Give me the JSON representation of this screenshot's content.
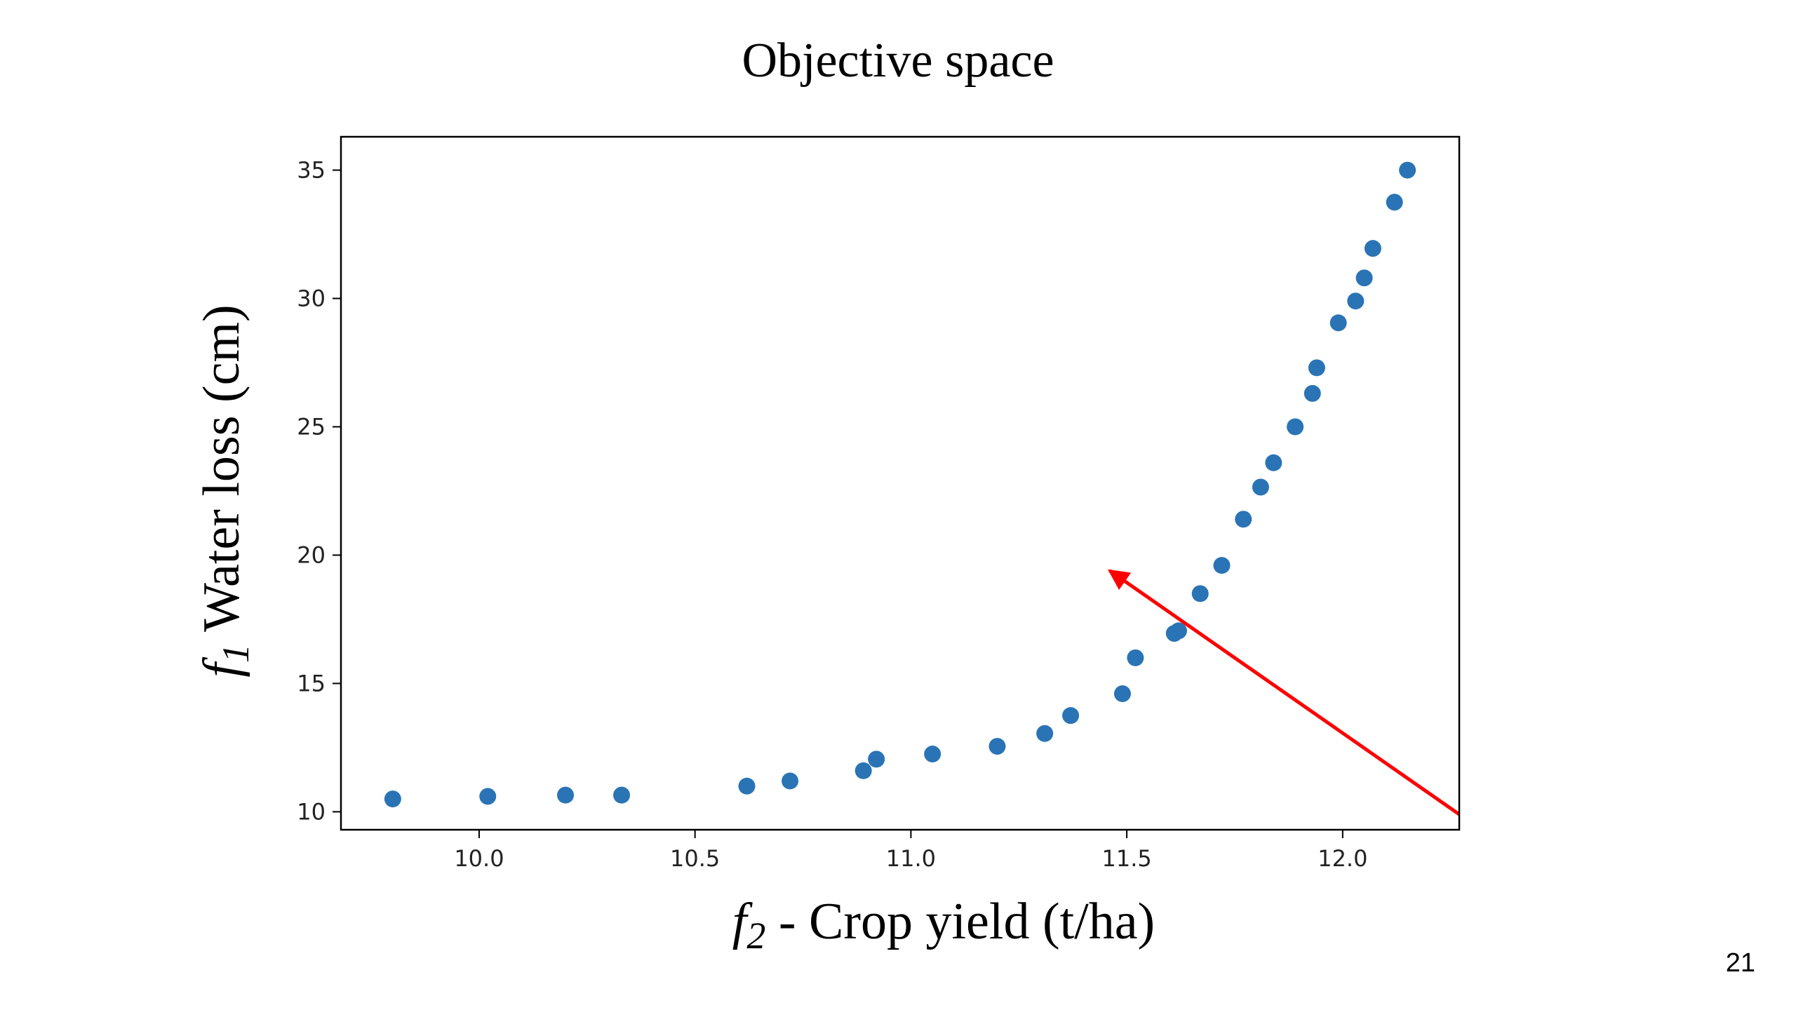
{
  "slide": {
    "title": "Objective space",
    "page_number": "21"
  },
  "chart_data": {
    "type": "scatter",
    "title": "",
    "xlabel": {
      "var": "f",
      "sub": "2",
      "text": " - Crop yield (t/ha)"
    },
    "ylabel": {
      "var": "f",
      "sub": "1",
      "text": " Water loss (cm)"
    },
    "xlim": [
      9.68,
      12.27
    ],
    "ylim": [
      9.3,
      36.3
    ],
    "xticks": [
      "10.0",
      "10.5",
      "11.0",
      "11.5",
      "12.0"
    ],
    "yticks": [
      "10",
      "15",
      "20",
      "25",
      "30",
      "35"
    ],
    "grid": false,
    "marker_color": "#2a74b5",
    "arrow_color": "#ff0000",
    "points": [
      [
        9.8,
        10.5
      ],
      [
        10.02,
        10.6
      ],
      [
        10.2,
        10.65
      ],
      [
        10.33,
        10.65
      ],
      [
        10.62,
        11.0
      ],
      [
        10.72,
        11.2
      ],
      [
        10.89,
        11.6
      ],
      [
        10.92,
        12.05
      ],
      [
        11.05,
        12.25
      ],
      [
        11.2,
        12.55
      ],
      [
        11.31,
        13.05
      ],
      [
        11.37,
        13.75
      ],
      [
        11.49,
        14.6
      ],
      [
        11.52,
        16.0
      ],
      [
        11.61,
        16.95
      ],
      [
        11.62,
        17.05
      ],
      [
        11.67,
        18.5
      ],
      [
        11.72,
        19.6
      ],
      [
        11.77,
        21.4
      ],
      [
        11.81,
        22.65
      ],
      [
        11.84,
        23.6
      ],
      [
        11.89,
        25.0
      ],
      [
        11.93,
        26.3
      ],
      [
        11.94,
        27.3
      ],
      [
        11.99,
        29.05
      ],
      [
        12.03,
        29.9
      ],
      [
        12.05,
        30.8
      ],
      [
        12.07,
        31.95
      ],
      [
        12.12,
        33.75
      ],
      [
        12.15,
        35.0
      ]
    ],
    "arrow": {
      "from": [
        12.27,
        9.9
      ],
      "to": [
        11.46,
        19.4
      ]
    }
  }
}
